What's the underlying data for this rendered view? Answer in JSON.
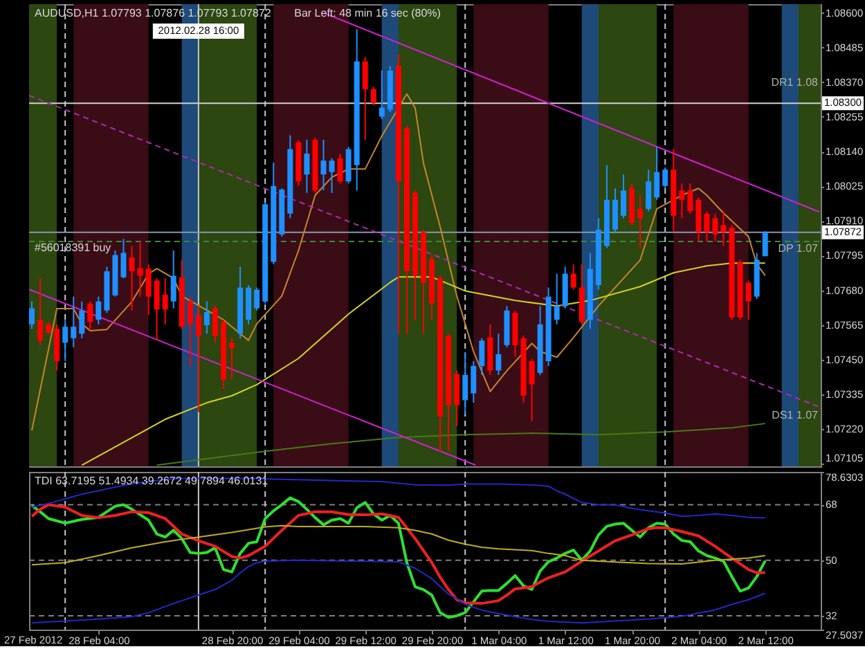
{
  "chart_data": [
    {
      "type": "candlestick",
      "title": "AUDUSD,H1 1.07793 1.07876 1.07793 1.07872",
      "x": [
        "2012-02-27T20:00",
        "2012-02-27T21:00",
        "2012-02-27T22:00",
        "2012-02-27T23:00",
        "2012-02-28T00:00",
        "2012-02-28T01:00",
        "2012-02-28T02:00",
        "2012-02-28T03:00",
        "2012-02-28T04:00",
        "2012-02-28T05:00",
        "2012-02-28T06:00",
        "2012-02-28T07:00",
        "2012-02-28T08:00",
        "2012-02-28T09:00",
        "2012-02-28T10:00",
        "2012-02-28T11:00",
        "2012-02-28T12:00",
        "2012-02-28T13:00",
        "2012-02-28T14:00",
        "2012-02-28T15:00",
        "2012-02-28T16:00",
        "2012-02-28T17:00",
        "2012-02-28T18:00",
        "2012-02-28T19:00",
        "2012-02-28T20:00",
        "2012-02-28T21:00",
        "2012-02-28T22:00",
        "2012-02-28T23:00",
        "2012-02-29T00:00",
        "2012-02-29T01:00",
        "2012-02-29T02:00",
        "2012-02-29T03:00",
        "2012-02-29T04:00",
        "2012-02-29T05:00",
        "2012-02-29T06:00",
        "2012-02-29T07:00",
        "2012-02-29T08:00",
        "2012-02-29T09:00",
        "2012-02-29T10:00",
        "2012-02-29T11:00",
        "2012-02-29T12:00",
        "2012-02-29T13:00",
        "2012-02-29T14:00",
        "2012-02-29T15:00",
        "2012-02-29T16:00",
        "2012-02-29T17:00",
        "2012-02-29T18:00",
        "2012-02-29T19:00",
        "2012-02-29T20:00",
        "2012-02-29T21:00",
        "2012-02-29T22:00",
        "2012-02-29T23:00",
        "2012-03-01T00:00",
        "2012-03-01T01:00",
        "2012-03-01T02:00",
        "2012-03-01T03:00",
        "2012-03-01T04:00",
        "2012-03-01T05:00",
        "2012-03-01T06:00",
        "2012-03-01T07:00",
        "2012-03-01T08:00",
        "2012-03-01T09:00",
        "2012-03-01T10:00",
        "2012-03-01T11:00",
        "2012-03-01T12:00",
        "2012-03-01T13:00",
        "2012-03-01T14:00",
        "2012-03-01T15:00",
        "2012-03-01T16:00",
        "2012-03-01T17:00",
        "2012-03-01T18:00",
        "2012-03-01T19:00",
        "2012-03-01T20:00",
        "2012-03-01T21:00",
        "2012-03-01T22:00",
        "2012-03-01T23:00",
        "2012-03-02T00:00",
        "2012-03-02T01:00",
        "2012-03-02T02:00",
        "2012-03-02T03:00",
        "2012-03-02T04:00",
        "2012-03-02T05:00",
        "2012-03-02T06:00",
        "2012-03-02T07:00",
        "2012-03-02T08:00",
        "2012-03-02T09:00",
        "2012-03-02T10:00",
        "2012-03-02T11:00",
        "2012-03-02T12:00"
      ],
      "ohlc": [
        [
          1.07567,
          1.07643,
          1.07552,
          1.0762
        ],
        [
          1.07582,
          1.0772,
          1.07498,
          1.07513
        ],
        [
          1.07567,
          1.07575,
          1.07536,
          1.07539
        ],
        [
          1.07552,
          1.07567,
          1.07414,
          1.07445
        ],
        [
          1.07506,
          1.07582,
          1.07445,
          1.07559
        ],
        [
          1.07521,
          1.07659,
          1.07491,
          1.07559
        ],
        [
          1.07536,
          1.07643,
          1.07521,
          1.07613
        ],
        [
          1.07636,
          1.07643,
          1.07552,
          1.07575
        ],
        [
          1.07582,
          1.07659,
          1.07567,
          1.07643
        ],
        [
          1.07613,
          1.07758,
          1.07605,
          1.07743
        ],
        [
          1.07663,
          1.07812,
          1.07659,
          1.07797
        ],
        [
          1.07723,
          1.0785,
          1.0772,
          1.07804
        ],
        [
          1.07789,
          1.07827,
          1.07613,
          1.07743
        ],
        [
          1.07754,
          1.07842,
          1.07659,
          1.07728
        ],
        [
          1.07751,
          1.07766,
          1.07598,
          1.07659
        ],
        [
          1.07712,
          1.0772,
          1.07513,
          1.07616
        ],
        [
          1.07666,
          1.0772,
          1.07567,
          1.07616
        ],
        [
          1.07643,
          1.07812,
          1.0762,
          1.07728
        ],
        [
          1.07723,
          1.07781,
          1.07551,
          1.07559
        ],
        [
          1.07643,
          1.07659,
          1.07429,
          1.07567
        ],
        [
          1.07598,
          1.07628,
          1.07276,
          1.07529
        ],
        [
          1.07564,
          1.07643,
          1.07536,
          1.07608
        ],
        [
          1.0762,
          1.07628,
          1.07506,
          1.07529
        ],
        [
          1.07575,
          1.07582,
          1.07353,
          1.07383
        ],
        [
          1.07506,
          1.07521,
          1.07383,
          1.07488
        ],
        [
          1.07536,
          1.07758,
          1.07521,
          1.07689
        ],
        [
          1.07582,
          1.07697,
          1.07567,
          1.07689
        ],
        [
          1.0762,
          1.07689,
          1.07613,
          1.07682
        ],
        [
          1.07643,
          1.07972,
          1.07636,
          1.07965
        ],
        [
          1.07774,
          1.08103,
          1.07766,
          1.08026
        ],
        [
          1.07865,
          1.08018,
          1.07858,
          1.08014
        ],
        [
          1.07934,
          1.08194,
          1.07919,
          1.08148
        ],
        [
          1.08171,
          1.08179,
          1.08026,
          1.08041
        ],
        [
          1.08064,
          1.08179,
          1.08003,
          1.08133
        ],
        [
          1.08179,
          1.08187,
          1.08003,
          1.08011
        ],
        [
          1.08064,
          1.08179,
          1.08011,
          1.0811
        ],
        [
          1.08072,
          1.08118,
          1.08003,
          1.0811
        ],
        [
          1.08118,
          1.08133,
          1.08034,
          1.08041
        ],
        [
          1.08041,
          1.08156,
          1.08034,
          1.08148
        ],
        [
          1.08095,
          1.08546,
          1.08011,
          1.08439
        ],
        [
          1.08439,
          1.08454,
          1.08179,
          1.08347
        ],
        [
          1.08347,
          1.08355,
          1.08294,
          1.08301
        ],
        [
          1.08256,
          1.08409,
          1.08248,
          1.08286
        ],
        [
          1.08279,
          1.08424,
          1.08271,
          1.08409
        ],
        [
          1.08424,
          1.08462,
          1.07536,
          1.08041
        ],
        [
          1.08217,
          1.08225,
          1.07536,
          1.07743
        ],
        [
          1.08003,
          1.08011,
          1.07582,
          1.07728
        ],
        [
          1.07873,
          1.07881,
          1.07536,
          1.07705
        ],
        [
          1.07784,
          1.07797,
          1.07582,
          1.07636
        ],
        [
          1.0772,
          1.07728,
          1.07146,
          1.07261
        ],
        [
          1.07529,
          1.07536,
          1.07146,
          1.07299
        ],
        [
          1.07402,
          1.07414,
          1.0723,
          1.07299
        ],
        [
          1.07315,
          1.07475,
          1.07269,
          1.07399
        ],
        [
          1.07338,
          1.07445,
          1.07307,
          1.07429
        ],
        [
          1.07429,
          1.07521,
          1.07399,
          1.07513
        ],
        [
          1.07524,
          1.07567,
          1.07399,
          1.07414
        ],
        [
          1.07414,
          1.07536,
          1.07399,
          1.07468
        ],
        [
          1.07498,
          1.07628,
          1.07491,
          1.07613
        ],
        [
          1.07605,
          1.07613,
          1.0746,
          1.07498
        ],
        [
          1.07521,
          1.07529,
          1.07307,
          1.0733
        ],
        [
          1.07445,
          1.07452,
          1.07246,
          1.07368
        ],
        [
          1.07406,
          1.07628,
          1.07399,
          1.07567
        ],
        [
          1.07445,
          1.07689,
          1.07429,
          1.07659
        ],
        [
          1.07582,
          1.07735,
          1.07567,
          1.07628
        ],
        [
          1.07628,
          1.07758,
          1.0762,
          1.07735
        ],
        [
          1.07735,
          1.07766,
          1.07682,
          1.07689
        ],
        [
          1.07689,
          1.07766,
          1.07567,
          1.07575
        ],
        [
          1.07582,
          1.07804,
          1.07552,
          1.07751
        ],
        [
          1.07697,
          1.07919,
          1.07682,
          1.07881
        ],
        [
          1.07827,
          1.08095,
          1.0782,
          1.0798
        ],
        [
          1.07881,
          1.08018,
          1.07873,
          1.0798
        ],
        [
          1.07927,
          1.08064,
          1.07919,
          1.08011
        ],
        [
          1.08018,
          1.08034,
          1.07896,
          1.07904
        ],
        [
          1.0795,
          1.07995,
          1.0782,
          1.07919
        ],
        [
          1.0795,
          1.0808,
          1.07942,
          1.08041
        ],
        [
          1.07988,
          1.08156,
          1.0798,
          1.08072
        ],
        [
          1.08026,
          1.08087,
          1.08018,
          1.0808
        ],
        [
          1.0808,
          1.08148,
          1.07873,
          1.07927
        ],
        [
          1.08011,
          1.08034,
          1.07919,
          1.0798
        ],
        [
          1.08011,
          1.08034,
          1.07934,
          1.07942
        ],
        [
          1.0798,
          1.07988,
          1.07842,
          1.07873
        ],
        [
          1.07934,
          1.07942,
          1.07842,
          1.07873
        ],
        [
          1.07919,
          1.07934,
          1.07842,
          1.07865
        ],
        [
          1.07896,
          1.07942,
          1.07827,
          1.07873
        ],
        [
          1.07888,
          1.07896,
          1.07582,
          1.0759
        ],
        [
          1.07774,
          1.07781,
          1.07582,
          1.0759
        ],
        [
          1.07705,
          1.07712,
          1.07582,
          1.07643
        ],
        [
          1.07659,
          1.07804,
          1.07651,
          1.07781
        ],
        [
          1.07793,
          1.07876,
          1.07793,
          1.07872
        ]
      ],
      "colors": [
        "#1e90ff",
        "#ff0000",
        "#ff0000",
        "#ff0000",
        "#1e90ff",
        "#1e90ff",
        "#1e90ff",
        "#ff0000",
        "#1e90ff",
        "#1e90ff",
        "#1e90ff",
        "#1e90ff",
        "#ff0000",
        "#ff0000",
        "#ff0000",
        "#ff0000",
        "#ff0000",
        "#1e90ff",
        "#ff0000",
        "#ff0000",
        "#ff0000",
        "#1e90ff",
        "#ff0000",
        "#ff0000",
        "#ff0000",
        "#1e90ff",
        "#1e90ff",
        "#1e90ff",
        "#1e90ff",
        "#1e90ff",
        "#1e90ff",
        "#1e90ff",
        "#ff0000",
        "#1e90ff",
        "#ff0000",
        "#1e90ff",
        "#1e90ff",
        "#ff0000",
        "#1e90ff",
        "#1e90ff",
        "#ff0000",
        "#ff0000",
        "#1e90ff",
        "#1e90ff",
        "#ff0000",
        "#ff0000",
        "#ff0000",
        "#ff0000",
        "#ff0000",
        "#ff0000",
        "#ff0000",
        "#ff0000",
        "#1e90ff",
        "#1e90ff",
        "#1e90ff",
        "#ff0000",
        "#1e90ff",
        "#1e90ff",
        "#ff0000",
        "#ff0000",
        "#ff0000",
        "#1e90ff",
        "#1e90ff",
        "#1e90ff",
        "#1e90ff",
        "#ff0000",
        "#ff0000",
        "#1e90ff",
        "#1e90ff",
        "#1e90ff",
        "#1e90ff",
        "#1e90ff",
        "#ff0000",
        "#ff0000",
        "#1e90ff",
        "#1e90ff",
        "#1e90ff",
        "#ff0000",
        "#ff0000",
        "#ff0000",
        "#ff0000",
        "#ff0000",
        "#ff0000",
        "#ff0000",
        "#ff0000",
        "#ff0000",
        "#ff0000",
        "#1e90ff",
        "#1e90ff"
      ],
      "series": [
        {
          "type": "line",
          "color": "#c8862a",
          "x": [
            "2012-02-27T20:00",
            "2012-02-27T23:00",
            "2012-02-28T01:00",
            "2012-02-28T02:00",
            "2012-02-28T03:00",
            "2012-02-28T05:00",
            "2012-02-28T08:00",
            "2012-02-28T10:00",
            "2012-02-28T11:00",
            "2012-02-28T13:00",
            "2012-02-28T14:00",
            "2012-02-28T17:00",
            "2012-02-28T19:00",
            "2012-02-28T21:00",
            "2012-02-28T22:00",
            "2012-02-28T23:00",
            "2012-02-29T02:00",
            "2012-02-29T04:00",
            "2012-02-29T06:00",
            "2012-02-29T08:00",
            "2012-02-29T10:00",
            "2012-02-29T12:00",
            "2012-02-29T14:00",
            "2012-02-29T16:00",
            "2012-02-29T17:00",
            "2012-02-29T18:00",
            "2012-02-29T19:00",
            "2012-02-29T21:00",
            "2012-02-29T23:00",
            "2012-03-01T01:00",
            "2012-03-01T03:00",
            "2012-03-01T05:00",
            "2012-03-01T08:00",
            "2012-03-01T09:00",
            "2012-03-01T11:00",
            "2012-03-01T13:00",
            "2012-03-01T16:00",
            "2012-03-01T21:00",
            "2012-03-01T23:00",
            "2012-03-02T02:00",
            "2012-03-02T04:00",
            "2012-03-02T05:00",
            "2012-03-02T07:00",
            "2012-03-02T10:00",
            "2012-03-02T11:00",
            "2012-03-02T12:00"
          ],
          "values": [
            1.07215,
            1.07619,
            1.07619,
            1.07569,
            1.07546,
            1.0755,
            1.07642,
            1.07734,
            1.07752,
            1.0772,
            1.07661,
            1.07614,
            1.07582,
            1.07536,
            1.07514,
            1.07569,
            1.07661,
            1.07812,
            1.07995,
            1.08055,
            1.08082,
            1.08082,
            1.08192,
            1.08285,
            1.08331,
            1.08285,
            1.08101,
            1.0789,
            1.07661,
            1.07477,
            1.07344,
            1.07413,
            1.07504,
            1.07477,
            1.07458,
            1.07523,
            1.07628,
            1.0778,
            1.0795,
            1.07995,
            1.08018,
            1.07995,
            1.07936,
            1.07858,
            1.07766,
            1.07729
          ]
        },
        {
          "type": "line",
          "color": "#d4d41e",
          "x": [
            "2012-02-28T02:00",
            "2012-02-28T12:00",
            "2012-02-28T17:00",
            "2012-02-28T20:00",
            "2012-02-28T23:00",
            "2012-02-29T04:00",
            "2012-02-29T10:00",
            "2012-02-29T15:00",
            "2012-02-29T16:00",
            "2012-02-29T20:00",
            "2012-03-01T00:00",
            "2012-03-01T06:00",
            "2012-03-01T11:00",
            "2012-03-01T15:00",
            "2012-03-01T21:00",
            "2012-03-02T01:00",
            "2012-03-02T05:00",
            "2012-03-02T08:00",
            "2012-03-02T12:00"
          ],
          "values": [
            1.071,
            1.07252,
            1.07307,
            1.0733,
            1.07367,
            1.07454,
            1.07601,
            1.07706,
            1.07724,
            1.07724,
            1.07678,
            1.07646,
            1.07628,
            1.07646,
            1.07692,
            1.07738,
            1.07761,
            1.0777,
            1.0777
          ]
        },
        {
          "type": "line",
          "color": "#4a7a14",
          "x": [
            "2012-02-28T11:00",
            "2012-02-28T16:00",
            "2012-02-29T00:00",
            "2012-02-29T08:00",
            "2012-02-29T16:00",
            "2012-03-01T00:00",
            "2012-03-01T08:00",
            "2012-03-01T16:00",
            "2012-03-02T00:00",
            "2012-03-02T08:00",
            "2012-03-02T12:00"
          ],
          "values": [
            1.071,
            1.07118,
            1.07146,
            1.07171,
            1.07192,
            1.07201,
            1.07206,
            1.07201,
            1.0721,
            1.07224,
            1.07238
          ]
        },
        {
          "type": "line",
          "color": "#d21fd2",
          "x": [
            "2012-02-29T07:00",
            "2012-03-02T18:30"
          ],
          "values": [
            1.086,
            1.0794
          ]
        },
        {
          "type": "line",
          "color": "#d21fd2",
          "x": [
            "2012-02-27T19:40",
            "2012-03-01T01:15"
          ],
          "values": [
            1.07683,
            1.071
          ]
        },
        {
          "type": "line",
          "color": "#b428b4",
          "line_style": "dashed",
          "x": [
            "2012-02-27T19:40",
            "2012-03-02T18:30"
          ],
          "values": [
            1.08326,
            1.07293
          ]
        }
      ],
      "xlim": [
        "2012-02-27T19:40",
        "2012-03-02T18:40"
      ],
      "ylim": [
        1.07096,
        1.08629
      ],
      "yticks": [
        {
          "value": 1.086,
          "label": "1.08600"
        },
        {
          "value": 1.08485,
          "label": "1.08485"
        },
        {
          "value": 1.0837,
          "label": "1.08370"
        },
        {
          "value": 1.08255,
          "label": "1.08255"
        },
        {
          "value": 1.0814,
          "label": "1.08140"
        },
        {
          "value": 1.08025,
          "label": "1.08025"
        },
        {
          "value": 1.0791,
          "label": "1.07910"
        },
        {
          "value": 1.07795,
          "label": "1.07795"
        },
        {
          "value": 1.0768,
          "label": "1.07680"
        },
        {
          "value": 1.07565,
          "label": "1.07565"
        },
        {
          "value": 1.0745,
          "label": "1.07450"
        },
        {
          "value": 1.07335,
          "label": "1.07335"
        },
        {
          "value": 1.0722,
          "label": "1.07220"
        },
        {
          "value": 1.07105,
          "label": "1.07105"
        }
      ],
      "tick_labels": "y",
      "bands": [
        {
          "axis": "x",
          "from": "2012-02-27T19:40",
          "to": "2012-02-27T23:00",
          "color": "#2c4710"
        },
        {
          "axis": "x",
          "from": "2012-02-28T01:00",
          "to": "2012-02-28T10:00",
          "color": "#3a0c16"
        },
        {
          "axis": "x",
          "from": "2012-02-28T14:00",
          "to": "2012-02-28T23:00",
          "color": "#2c4710"
        },
        {
          "axis": "x",
          "from": "2012-02-28T14:00",
          "to": "2012-02-28T16:00",
          "color": "#1d4a78"
        },
        {
          "axis": "x",
          "from": "2012-02-29T01:00",
          "to": "2012-02-29T10:00",
          "color": "#3a0c16"
        },
        {
          "axis": "x",
          "from": "2012-02-29T14:00",
          "to": "2012-02-29T23:00",
          "color": "#2c4710"
        },
        {
          "axis": "x",
          "from": "2012-02-29T14:00",
          "to": "2012-02-29T16:00",
          "color": "#1d4a78"
        },
        {
          "axis": "x",
          "from": "2012-03-01T01:00",
          "to": "2012-03-01T10:00",
          "color": "#3a0c16"
        },
        {
          "axis": "x",
          "from": "2012-03-01T14:00",
          "to": "2012-03-01T23:00",
          "color": "#2c4710"
        },
        {
          "axis": "x",
          "from": "2012-03-01T14:00",
          "to": "2012-03-01T16:00",
          "color": "#1d4a78"
        },
        {
          "axis": "x",
          "from": "2012-03-02T01:00",
          "to": "2012-03-02T10:00",
          "color": "#3a0c16"
        },
        {
          "axis": "x",
          "from": "2012-03-02T14:00",
          "to": "2012-03-02T18:40",
          "color": "#2c4710"
        },
        {
          "axis": "x",
          "from": "2012-03-02T14:00",
          "to": "2012-03-02T16:00",
          "color": "#1d4a78"
        }
      ],
      "ref_lines": [
        {
          "axis": "x",
          "value": "2012-02-28T00:00",
          "color": "#c8c8c8",
          "line_style": "dashed"
        },
        {
          "axis": "x",
          "value": "2012-02-29T00:00",
          "color": "#c8c8c8",
          "line_style": "dashed"
        },
        {
          "axis": "x",
          "value": "2012-03-01T00:00",
          "color": "#c8c8c8",
          "line_style": "dashed"
        },
        {
          "axis": "x",
          "value": "2012-03-02T00:00",
          "color": "#c8c8c8",
          "line_style": "dashed"
        },
        {
          "axis": "x",
          "value": "2012-02-28T16:00",
          "label": "2012.02.28 16:00",
          "color": "#c8c8c8"
        },
        {
          "axis": "y",
          "value": 1.083,
          "label": "1.08300",
          "color": "#d0d0d0"
        },
        {
          "axis": "y",
          "value": 1.07872,
          "label": "1.07872",
          "color": "#8898b0"
        },
        {
          "axis": "y",
          "value": 1.07842,
          "label": "#56018391 buy",
          "color": "#3a8a3a",
          "line_style": "dashed"
        }
      ],
      "annotations": [
        "Bar Left: 48 min 16 sec (80%)",
        "DR1 1.08",
        "DP 1.07",
        "DS1 1.07"
      ]
    },
    {
      "type": "line",
      "title": "TDI 63.7195 51.4934 39.2672 49.7894 46.0131",
      "series": [
        {
          "color": "#2ee02e",
          "x": [
            "2012-02-27T20:00",
            "2012-02-27T21:00",
            "2012-02-27T22:00",
            "2012-02-28T00:00",
            "2012-02-28T02:00",
            "2012-02-28T04:00",
            "2012-02-28T06:00",
            "2012-02-28T07:00",
            "2012-02-28T08:00",
            "2012-02-28T10:00",
            "2012-02-28T11:00",
            "2012-02-28T12:00",
            "2012-02-28T13:00",
            "2012-02-28T14:00",
            "2012-02-28T15:00",
            "2012-02-28T16:00",
            "2012-02-28T17:00",
            "2012-02-28T18:00",
            "2012-02-28T19:00",
            "2012-02-28T20:00",
            "2012-02-28T21:00",
            "2012-02-28T22:00",
            "2012-02-28T23:00",
            "2012-02-29T00:00",
            "2012-02-29T01:00",
            "2012-02-29T02:00",
            "2012-02-29T03:00",
            "2012-02-29T04:00",
            "2012-02-29T05:00",
            "2012-02-29T06:00",
            "2012-02-29T07:00",
            "2012-02-29T08:00",
            "2012-02-29T09:00",
            "2012-02-29T10:00",
            "2012-02-29T11:00",
            "2012-02-29T12:00",
            "2012-02-29T13:00",
            "2012-02-29T14:00",
            "2012-02-29T15:00",
            "2012-02-29T16:00",
            "2012-02-29T17:00",
            "2012-02-29T18:00",
            "2012-02-29T19:00",
            "2012-02-29T20:00",
            "2012-02-29T21:00",
            "2012-02-29T22:00",
            "2012-02-29T23:00",
            "2012-03-01T00:00",
            "2012-03-01T01:00",
            "2012-03-01T02:00",
            "2012-03-01T03:00",
            "2012-03-01T04:00",
            "2012-03-01T05:00",
            "2012-03-01T06:00",
            "2012-03-01T07:00",
            "2012-03-01T08:00",
            "2012-03-01T09:00",
            "2012-03-01T10:00",
            "2012-03-01T11:00",
            "2012-03-01T12:00",
            "2012-03-01T13:00",
            "2012-03-01T14:00",
            "2012-03-01T15:00",
            "2012-03-01T16:00",
            "2012-03-01T17:00",
            "2012-03-01T18:00",
            "2012-03-01T19:00",
            "2012-03-01T20:00",
            "2012-03-01T21:00",
            "2012-03-01T22:00",
            "2012-03-01T23:00",
            "2012-03-02T00:00",
            "2012-03-02T01:00",
            "2012-03-02T02:00",
            "2012-03-02T03:00",
            "2012-03-02T04:00",
            "2012-03-02T05:00",
            "2012-03-02T06:00",
            "2012-03-02T07:00",
            "2012-03-02T08:00",
            "2012-03-02T09:00",
            "2012-03-02T10:00",
            "2012-03-02T11:00",
            "2012-03-02T12:00"
          ],
          "values": [
            67.7,
            65.7,
            63.5,
            62.0,
            63.2,
            63.9,
            67.5,
            68.0,
            66.5,
            63.0,
            58.5,
            57.5,
            59.7,
            57.0,
            52.5,
            52.2,
            52.5,
            54.0,
            47.0,
            46.2,
            52.2,
            55.5,
            56.0,
            63.5,
            66.0,
            68.0,
            70.2,
            69.0,
            66.5,
            63.8,
            61.5,
            63.0,
            63.5,
            62.0,
            67.0,
            68.7,
            65.0,
            63.0,
            64.5,
            62.0,
            49.2,
            41.4,
            40.5,
            38.7,
            33.0,
            31.5,
            32.0,
            33.0,
            36.5,
            40.0,
            40.2,
            40.2,
            42.5,
            45.0,
            41.7,
            40.5,
            46.5,
            49.5,
            50.7,
            52.2,
            53.3,
            50.0,
            53.0,
            58.2,
            61.0,
            61.7,
            62.0,
            59.7,
            57.5,
            60.5,
            62.0,
            61.7,
            58.5,
            56.4,
            56.0,
            53.0,
            51.5,
            50.7,
            49.7,
            44.7,
            40.0,
            41.0,
            44.7,
            49.7894
          ]
        },
        {
          "color": "#f02020",
          "x": [
            "2012-02-27T20:00",
            "2012-02-27T21:00",
            "2012-02-27T22:00",
            "2012-02-28T00:00",
            "2012-02-28T02:00",
            "2012-02-28T04:00",
            "2012-02-28T06:00",
            "2012-02-28T08:00",
            "2012-02-28T10:00",
            "2012-02-28T12:00",
            "2012-02-28T14:00",
            "2012-02-28T16:00",
            "2012-02-28T18:00",
            "2012-02-28T20:00",
            "2012-02-28T21:00",
            "2012-02-28T22:00",
            "2012-02-29T00:00",
            "2012-02-29T02:00",
            "2012-02-29T04:00",
            "2012-02-29T06:00",
            "2012-02-29T08:00",
            "2012-02-29T10:00",
            "2012-02-29T12:00",
            "2012-02-29T14:00",
            "2012-02-29T16:00",
            "2012-02-29T18:00",
            "2012-02-29T20:00",
            "2012-02-29T21:00",
            "2012-02-29T22:00",
            "2012-02-29T23:00",
            "2012-03-01T00:00",
            "2012-03-01T02:00",
            "2012-03-01T04:00",
            "2012-03-01T05:00",
            "2012-03-01T06:00",
            "2012-03-01T08:00",
            "2012-03-01T09:00",
            "2012-03-01T10:00",
            "2012-03-01T12:00",
            "2012-03-01T14:00",
            "2012-03-01T16:00",
            "2012-03-01T18:00",
            "2012-03-01T20:00",
            "2012-03-01T22:00",
            "2012-03-01T23:00",
            "2012-03-02T00:00",
            "2012-03-02T02:00",
            "2012-03-02T04:00",
            "2012-03-02T06:00",
            "2012-03-02T08:00",
            "2012-03-02T10:00",
            "2012-03-02T11:00",
            "2012-03-02T12:00"
          ],
          "values": [
            64.2,
            66.5,
            68.0,
            67.2,
            64.5,
            63.8,
            64.5,
            65.7,
            65.4,
            63.5,
            58.5,
            56.3,
            54.5,
            51.2,
            50.7,
            51.5,
            54.5,
            59.7,
            64.5,
            65.7,
            65.7,
            64.8,
            64.7,
            65.0,
            63.9,
            57.0,
            49.2,
            44.5,
            40.5,
            37.2,
            36.2,
            36.0,
            36.9,
            38.7,
            40.7,
            41.4,
            42.9,
            44.3,
            46.2,
            49.7,
            53.0,
            56.3,
            58.2,
            60.2,
            60.6,
            60.5,
            59.3,
            57.9,
            54.5,
            50.7,
            47.0,
            45.9,
            46.0131
          ]
        },
        {
          "color": "#bfae1a",
          "x": [
            "2012-02-27T20:00",
            "2012-02-28T00:00",
            "2012-02-28T04:00",
            "2012-02-28T08:00",
            "2012-02-28T12:00",
            "2012-02-28T16:00",
            "2012-02-28T20:00",
            "2012-02-29T00:00",
            "2012-02-29T02:00",
            "2012-02-29T04:00",
            "2012-02-29T08:00",
            "2012-02-29T12:00",
            "2012-02-29T16:00",
            "2012-02-29T18:00",
            "2012-02-29T20:00",
            "2012-02-29T22:00",
            "2012-03-01T00:00",
            "2012-03-01T02:00",
            "2012-03-01T04:00",
            "2012-03-01T08:00",
            "2012-03-01T10:00",
            "2012-03-01T12:00",
            "2012-03-01T14:00",
            "2012-03-01T18:00",
            "2012-03-01T22:00",
            "2012-03-02T02:00",
            "2012-03-02T06:00",
            "2012-03-02T10:00",
            "2012-03-02T12:00"
          ],
          "values": [
            48.5,
            49.2,
            51.5,
            54.0,
            56.0,
            57.5,
            59.0,
            60.8,
            61.2,
            60.9,
            60.9,
            60.9,
            60.5,
            59.7,
            58.5,
            56.5,
            55.2,
            54.2,
            53.7,
            53.1,
            52.2,
            51.5,
            50.0,
            49.4,
            48.9,
            48.8,
            50.0,
            50.7,
            51.4934
          ]
        },
        {
          "color": "#2626c8",
          "x": [
            "2012-02-27T20:00",
            "2012-02-27T22:00",
            "2012-02-28T00:00",
            "2012-02-28T02:00",
            "2012-02-28T04:00",
            "2012-02-28T06:00",
            "2012-02-28T08:00",
            "2012-02-28T10:00",
            "2012-02-28T12:00",
            "2012-02-28T14:00",
            "2012-02-28T18:00",
            "2012-02-28T22:00",
            "2012-02-29T02:00",
            "2012-02-29T08:00",
            "2012-02-29T14:00",
            "2012-02-29T18:00",
            "2012-02-29T22:00",
            "2012-03-01T00:00",
            "2012-03-01T04:00",
            "2012-03-01T08:00",
            "2012-03-01T10:00",
            "2012-03-01T11:00",
            "2012-03-01T12:00",
            "2012-03-01T14:00",
            "2012-03-01T16:00",
            "2012-03-01T18:00",
            "2012-03-01T20:00",
            "2012-03-01T22:00",
            "2012-03-02T00:00",
            "2012-03-02T02:00",
            "2012-03-02T04:00",
            "2012-03-02T06:00",
            "2012-03-02T08:00",
            "2012-03-02T10:00",
            "2012-03-02T12:00"
          ],
          "values": [
            67.2,
            68.4,
            69.9,
            71.4,
            72.5,
            73.7,
            74.7,
            75.5,
            76.2,
            76.5,
            76.5,
            76.5,
            76.2,
            75.8,
            75.5,
            74.4,
            74.3,
            74.7,
            74.7,
            74.4,
            74.0,
            72.5,
            71.4,
            68.7,
            68.0,
            68.0,
            66.8,
            66.0,
            65.3,
            64.2,
            64.5,
            65.0,
            64.5,
            63.9,
            63.7195
          ]
        },
        {
          "color": "#2626c8",
          "x": [
            "2012-02-27T20:00",
            "2012-02-28T00:00",
            "2012-02-28T04:00",
            "2012-02-28T08:00",
            "2012-02-28T10:00",
            "2012-02-28T12:00",
            "2012-02-28T14:00",
            "2012-02-28T16:00",
            "2012-02-28T18:00",
            "2012-02-28T20:00",
            "2012-02-28T21:00",
            "2012-02-28T22:00",
            "2012-02-28T23:00",
            "2012-02-29T00:00",
            "2012-02-29T04:00",
            "2012-02-29T16:00",
            "2012-02-29T18:00",
            "2012-02-29T20:00",
            "2012-02-29T22:00",
            "2012-02-29T23:00",
            "2012-03-01T00:00",
            "2012-03-01T02:00",
            "2012-03-01T04:00",
            "2012-03-01T06:00",
            "2012-03-01T08:00",
            "2012-03-01T10:00",
            "2012-03-01T14:00",
            "2012-03-01T18:00",
            "2012-03-01T22:00",
            "2012-03-02T02:00",
            "2012-03-02T06:00",
            "2012-03-02T08:00",
            "2012-03-02T10:00",
            "2012-03-02T12:00"
          ],
          "values": [
            29.7,
            30.3,
            30.9,
            31.7,
            33.0,
            35.0,
            36.9,
            38.7,
            40.5,
            43.5,
            45.9,
            48.0,
            49.2,
            49.7,
            50.0,
            49.5,
            47.4,
            44.0,
            39.0,
            37.5,
            35.7,
            33.8,
            32.7,
            31.7,
            30.8,
            30.2,
            29.7,
            30.3,
            30.9,
            31.8,
            33.9,
            35.7,
            37.2,
            39.2672
          ]
        }
      ],
      "xlim": [
        "2012-02-27T19:40",
        "2012-03-02T18:40"
      ],
      "xticks": [
        {
          "value": "2012-02-28T04:00",
          "label": "28 Feb 04:00"
        },
        {
          "value": "2012-02-28T20:00",
          "label": "28 Feb 20:00"
        },
        {
          "value": "2012-02-29T04:00",
          "label": "29 Feb 04:00"
        },
        {
          "value": "2012-02-29T12:00",
          "label": "29 Feb 12:00"
        },
        {
          "value": "2012-02-29T20:00",
          "label": "29 Feb 20:00"
        },
        {
          "value": "2012-03-01T04:00",
          "label": "1 Mar 04:00"
        },
        {
          "value": "2012-03-01T12:00",
          "label": "1 Mar 12:00"
        },
        {
          "value": "2012-03-01T20:00",
          "label": "1 Mar 20:00"
        },
        {
          "value": "2012-03-02T04:00",
          "label": "2 Mar 04:00"
        },
        {
          "value": "2012-03-02T12:00",
          "label": "2 Mar 12:00"
        }
      ],
      "ylim": [
        27.5037,
        78.6303
      ],
      "yticks": [
        27.5037,
        32,
        50,
        68,
        78.6303
      ],
      "ref_lines": [
        {
          "axis": "y",
          "value": 68,
          "color": "#808080",
          "line_style": "dashed"
        },
        {
          "axis": "y",
          "value": 50,
          "color": "#808080",
          "line_style": "dashed"
        },
        {
          "axis": "y",
          "value": 32,
          "color": "#808080",
          "line_style": "dashed"
        },
        {
          "axis": "x",
          "value": "2012-02-28T00:00",
          "color": "#c8c8c8",
          "line_style": "dashed"
        },
        {
          "axis": "x",
          "value": "2012-02-29T00:00",
          "color": "#c8c8c8",
          "line_style": "dashed"
        },
        {
          "axis": "x",
          "value": "2012-03-01T00:00",
          "color": "#c8c8c8",
          "line_style": "dashed"
        },
        {
          "axis": "x",
          "value": "2012-03-02T00:00",
          "color": "#c8c8c8",
          "line_style": "dashed"
        },
        {
          "axis": "x",
          "value": "2012-02-28T16:00",
          "color": "#c8c8c8"
        }
      ],
      "annotations": [
        "27 Feb 2012"
      ]
    }
  ]
}
